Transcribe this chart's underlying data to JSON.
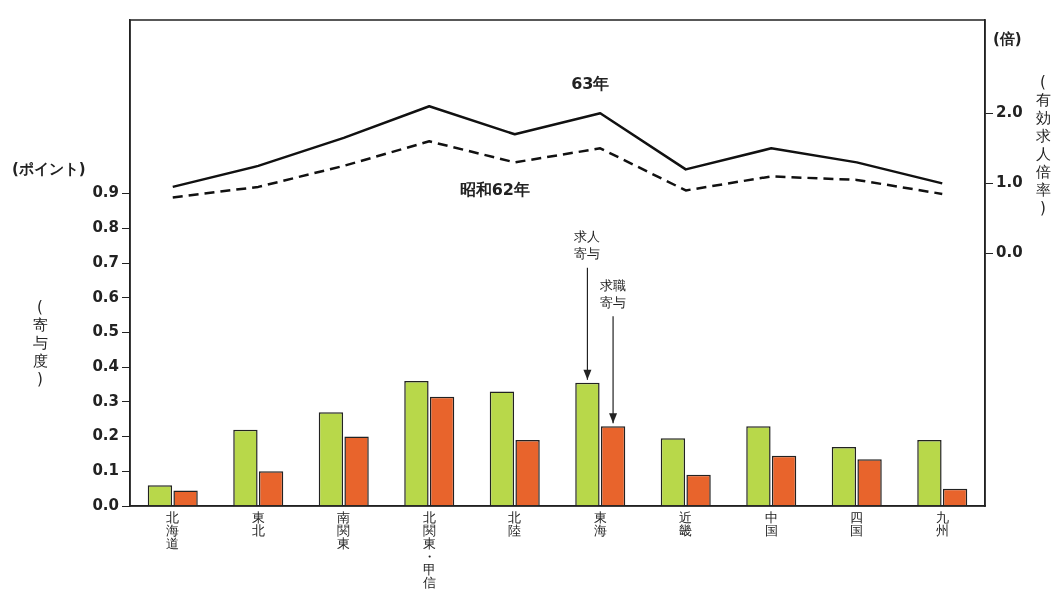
{
  "chart_data": {
    "type": "bar",
    "ylabel": "(寄与度)",
    "y2label": "(有効求人倍率)",
    "annotations": [
      "(ポイント)",
      "(倍)"
    ],
    "categories": [
      "北海道",
      "東北",
      "南関東",
      "北関東・甲信",
      "北陸",
      "東海",
      "近畿",
      "中国",
      "四国",
      "九州"
    ],
    "series": [
      {
        "name": "求人寄与",
        "color": "#b8d84a",
        "values": [
          0.06,
          0.22,
          0.27,
          0.36,
          0.33,
          0.355,
          0.195,
          0.23,
          0.17,
          0.19
        ]
      },
      {
        "name": "求職寄与",
        "color": "#e8642c",
        "values": [
          0.045,
          0.1,
          0.2,
          0.315,
          0.19,
          0.23,
          0.09,
          0.145,
          0.135,
          0.05
        ]
      },
      {
        "name": "63年",
        "type": "line",
        "axis": "y2",
        "color": "#111111",
        "line_style": "solid",
        "values": [
          0.95,
          1.25,
          1.65,
          2.1,
          1.7,
          2.0,
          1.2,
          1.5,
          1.3,
          1.0
        ]
      },
      {
        "name": "昭和62年",
        "type": "line",
        "axis": "y2",
        "color": "#111111",
        "line_style": "dashed",
        "values": [
          0.8,
          0.95,
          1.25,
          1.6,
          1.3,
          1.5,
          0.9,
          1.1,
          1.05,
          0.85
        ]
      }
    ],
    "ylim": [
      0,
      1.4
    ],
    "yticks": [
      {
        "value": 0,
        "label": "0.0"
      },
      {
        "value": 0.1,
        "label": "0.1"
      },
      {
        "value": 0.2,
        "label": "0.2"
      },
      {
        "value": 0.3,
        "label": "0.3"
      },
      {
        "value": 0.4,
        "label": "0.4"
      },
      {
        "value": 0.5,
        "label": "0.5"
      },
      {
        "value": 0.6,
        "label": "0.6"
      },
      {
        "value": 0.7,
        "label": "0.7"
      },
      {
        "value": 0.8,
        "label": "0.8"
      },
      {
        "value": 0.9,
        "label": "0.9"
      }
    ],
    "y2lim": [
      -3.6,
      3.33
    ],
    "y2ticks": [
      {
        "value": 0,
        "label": "0.0"
      },
      {
        "value": 1,
        "label": "1.0"
      },
      {
        "value": 2,
        "label": "2.0"
      }
    ],
    "grid": false,
    "legend": false,
    "marker": "none"
  }
}
